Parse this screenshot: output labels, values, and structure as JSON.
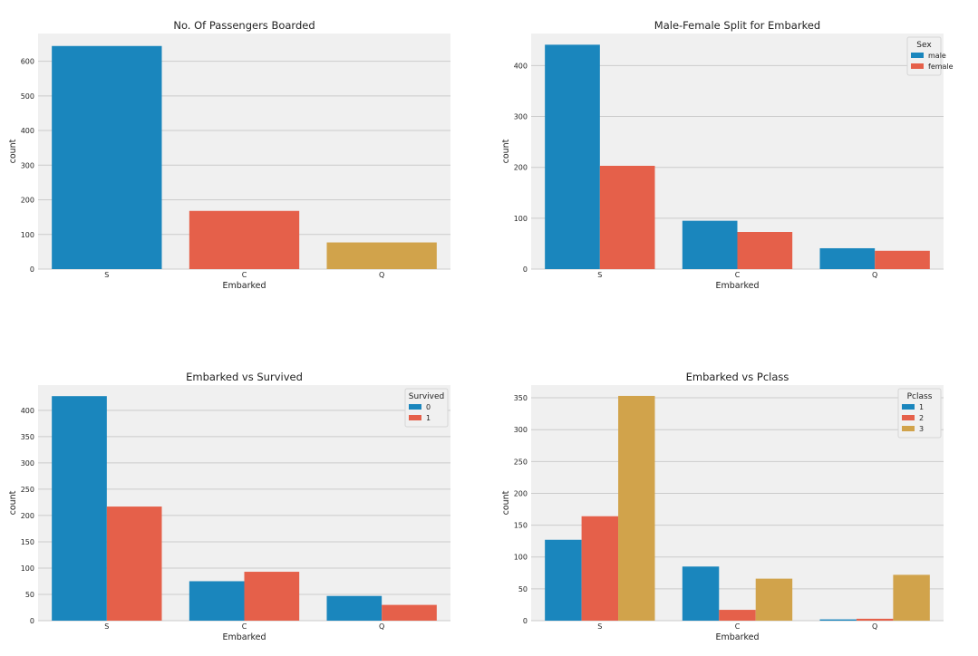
{
  "chart_data": [
    {
      "type": "bar",
      "title": "No. Of Passengers Boarded",
      "xlabel": "Embarked",
      "ylabel": "count",
      "categories": [
        "S",
        "C",
        "Q"
      ],
      "series": [
        {
          "values": [
            644,
            168,
            77
          ],
          "colors": [
            "#1a86bd",
            "#e5604a",
            "#d1a34b"
          ]
        }
      ],
      "ylim": [
        0,
        680
      ],
      "yticks": [
        0,
        100,
        200,
        300,
        400,
        500,
        600
      ],
      "grid": true
    },
    {
      "type": "bar",
      "title": "Male-Female Split for Embarked",
      "xlabel": "Embarked",
      "ylabel": "count",
      "categories": [
        "S",
        "C",
        "Q"
      ],
      "legend_title": "Sex",
      "legend_position": "top-right",
      "series": [
        {
          "name": "male",
          "color": "#1a86bd",
          "values": [
            441,
            95,
            41
          ]
        },
        {
          "name": "female",
          "color": "#e5604a",
          "values": [
            203,
            73,
            36
          ]
        }
      ],
      "ylim": [
        0,
        463
      ],
      "yticks": [
        0,
        100,
        200,
        300,
        400
      ],
      "grid": true
    },
    {
      "type": "bar",
      "title": "Embarked vs Survived",
      "xlabel": "Embarked",
      "ylabel": "count",
      "categories": [
        "S",
        "C",
        "Q"
      ],
      "legend_title": "Survived",
      "legend_position": "top-right",
      "series": [
        {
          "name": "0",
          "color": "#1a86bd",
          "values": [
            427,
            75,
            47
          ]
        },
        {
          "name": "1",
          "color": "#e5604a",
          "values": [
            217,
            93,
            30
          ]
        }
      ],
      "ylim": [
        0,
        448
      ],
      "yticks": [
        0,
        50,
        100,
        150,
        200,
        250,
        300,
        350,
        400
      ],
      "grid": true
    },
    {
      "type": "bar",
      "title": "Embarked vs Pclass",
      "xlabel": "Embarked",
      "ylabel": "count",
      "categories": [
        "S",
        "C",
        "Q"
      ],
      "legend_title": "Pclass",
      "legend_position": "top-right",
      "series": [
        {
          "name": "1",
          "color": "#1a86bd",
          "values": [
            127,
            85,
            2
          ]
        },
        {
          "name": "2",
          "color": "#e5604a",
          "values": [
            164,
            17,
            3
          ]
        },
        {
          "name": "3",
          "color": "#d1a34b",
          "values": [
            353,
            66,
            72
          ]
        }
      ],
      "ylim": [
        0,
        370
      ],
      "yticks": [
        0,
        50,
        100,
        150,
        200,
        250,
        300,
        350
      ],
      "grid": true
    }
  ]
}
